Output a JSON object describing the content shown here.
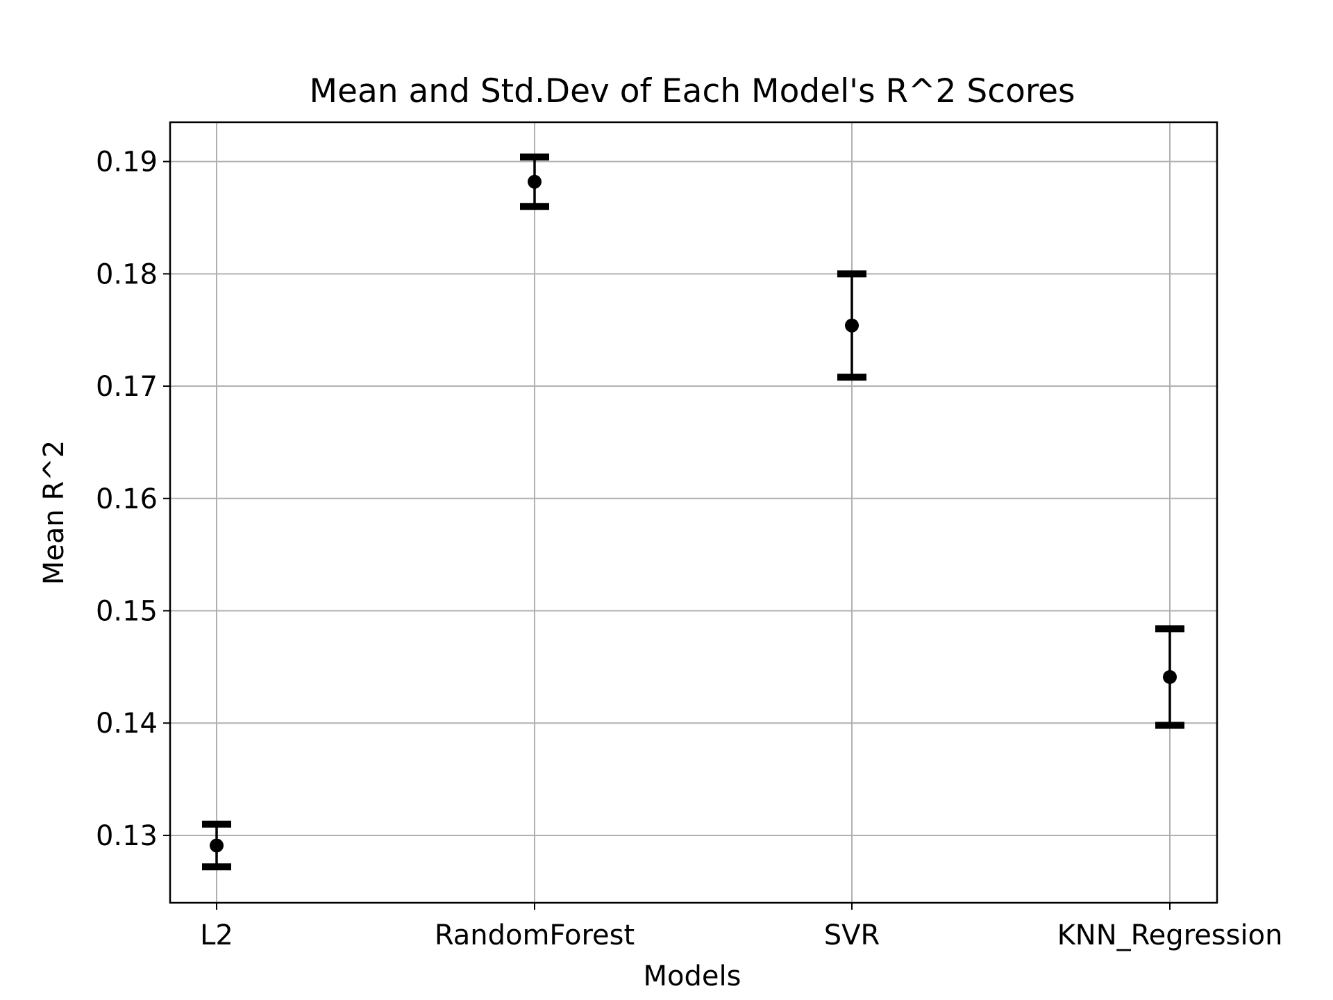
{
  "chart_data": {
    "type": "scatter",
    "title": "Mean and Std.Dev of Each Model's R^2 Scores",
    "xlabel": "Models",
    "ylabel": "Mean R^2",
    "categories": [
      "L2",
      "RandomForest",
      "SVR",
      "KNN_Regression"
    ],
    "series": [
      {
        "means": [
          0.1291,
          0.1882,
          0.1754,
          0.1441
        ],
        "stds": [
          0.0019,
          0.0022,
          0.0046,
          0.0043
        ]
      }
    ],
    "ylim": [
      0.124,
      0.1935
    ],
    "yticks": [
      0.13,
      0.14,
      0.15,
      0.16,
      0.17,
      0.18,
      0.19
    ],
    "ytick_labels": [
      "0.13",
      "0.14",
      "0.15",
      "0.16",
      "0.17",
      "0.18",
      "0.19"
    ],
    "grid": true,
    "colors": {
      "marker": "#000000",
      "grid": "#b0b0b0",
      "axes": "#000000"
    }
  }
}
